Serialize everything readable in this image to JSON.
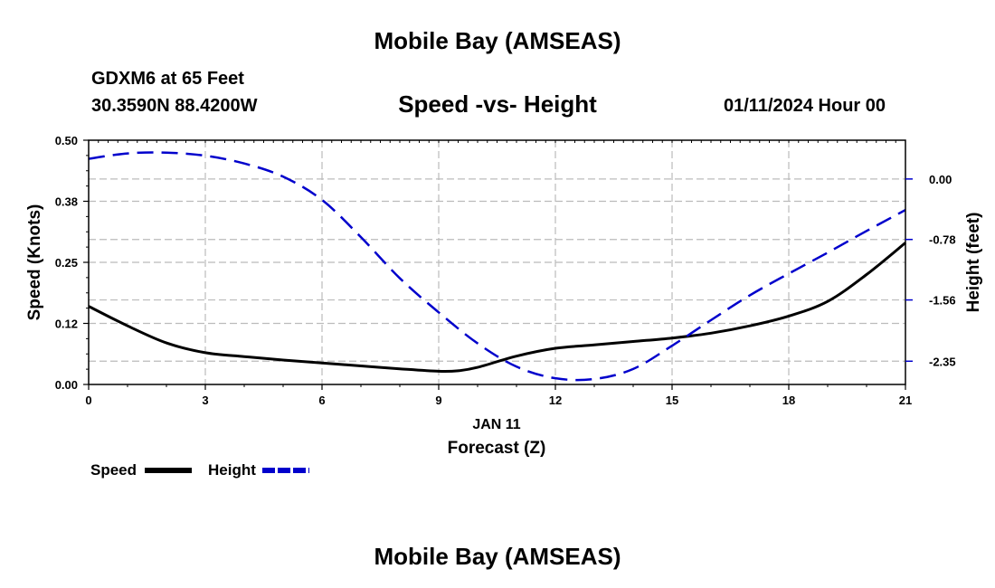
{
  "header": {
    "title": "Mobile Bay (AMSEAS)",
    "station": "GDXM6 at 65 Feet",
    "coordinates": "30.3590N  88.4200W",
    "date": "01/11/2024 Hour 00"
  },
  "footer": {
    "title": "Mobile Bay (AMSEAS)"
  },
  "chart_data": {
    "type": "line",
    "title": "Speed -vs- Height",
    "xlabel": "Forecast (Z)",
    "xdate_label": "JAN 11",
    "ylabel": "Speed (Knots)",
    "y2label": "Height (feet)",
    "xlim": [
      0,
      21
    ],
    "ylim": [
      0,
      0.5
    ],
    "y2lim": [
      -2.65,
      0.5
    ],
    "x_ticks": [
      0,
      3,
      6,
      9,
      12,
      15,
      18,
      21
    ],
    "x_tick_labels": [
      "0",
      "3",
      "6",
      "9",
      "12",
      "15",
      "18",
      "21"
    ],
    "y_ticks": [
      0,
      0.125,
      0.25,
      0.375,
      0.5
    ],
    "y_tick_labels": [
      "0.00",
      "0.12",
      "0.25",
      "0.38",
      "0.50"
    ],
    "y2_ticks": [
      0,
      -0.78,
      -1.56,
      -2.35
    ],
    "y2_tick_labels": [
      "0.00",
      "-0.78",
      "-1.56",
      "-2.35"
    ],
    "grid": true,
    "legend_position": "bottom-left",
    "series": [
      {
        "name": "Speed",
        "axis": "left",
        "color": "#000000",
        "style": "solid",
        "x": [
          0,
          1,
          2,
          3,
          4,
          5,
          6,
          7,
          8,
          9,
          9.5,
          10,
          11,
          12,
          13,
          14,
          15,
          16,
          17,
          18,
          19,
          20,
          21
        ],
        "values": [
          0.16,
          0.12,
          0.085,
          0.065,
          0.057,
          0.05,
          0.044,
          0.038,
          0.032,
          0.027,
          0.028,
          0.035,
          0.058,
          0.074,
          0.081,
          0.088,
          0.095,
          0.105,
          0.12,
          0.14,
          0.17,
          0.225,
          0.29
        ]
      },
      {
        "name": "Height",
        "axis": "right",
        "color": "#0000cc",
        "style": "dashed",
        "x": [
          0,
          1,
          2,
          3,
          4,
          5,
          6,
          7,
          8,
          9,
          10,
          11,
          12,
          13,
          14,
          15,
          16,
          17,
          18,
          19,
          20,
          21
        ],
        "values": [
          0.26,
          0.33,
          0.34,
          0.3,
          0.2,
          0.03,
          -0.27,
          -0.75,
          -1.28,
          -1.72,
          -2.12,
          -2.42,
          -2.57,
          -2.58,
          -2.45,
          -2.15,
          -1.82,
          -1.5,
          -1.22,
          -0.95,
          -0.67,
          -0.4
        ]
      }
    ]
  }
}
